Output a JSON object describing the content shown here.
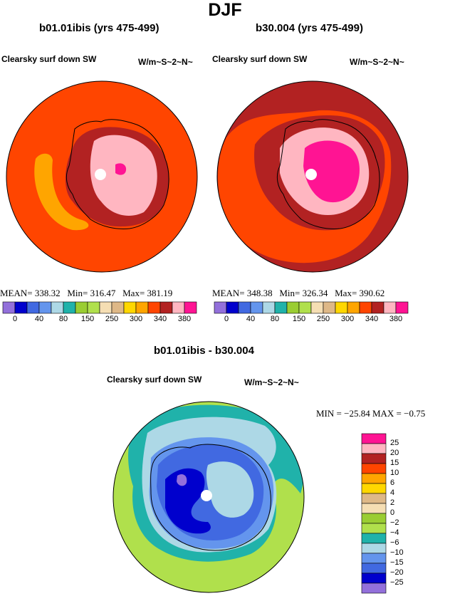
{
  "figure": {
    "title": "DJF"
  },
  "chart_data": [
    {
      "type": "heatmap",
      "projection": "south-polar stereographic",
      "title": "b01.01ibis (yrs 475-499)",
      "left_label": "Clearsky surf down SW",
      "right_label": "W/m~S~2~N~",
      "stats": {
        "mean_label": "MEAN=",
        "mean": "338.32",
        "min_label": "Min=",
        "min": "316.47",
        "max_label": "Max=",
        "max": "381.19"
      },
      "levels": [
        0,
        40,
        80,
        150,
        250,
        300,
        340,
        380
      ],
      "colors": [
        "#9370db",
        "#0000cd",
        "#4169e1",
        "#6495ed",
        "#add8e6",
        "#20b2aa",
        "#9acd32",
        "#b0e04c",
        "#f5deb3",
        "#deb887",
        "#ffd700",
        "#ffa500",
        "#ff4500",
        "#b22222",
        "#ffb6c1",
        "#ff1493"
      ],
      "field": {
        "ocean": "#ff4500",
        "ring": "#b22222",
        "coast": "#ffb6c1",
        "plateau": "#ff1493",
        "patch": "#ffa500"
      }
    },
    {
      "type": "heatmap",
      "projection": "south-polar stereographic",
      "title": "b30.004 (yrs 475-499)",
      "left_label": "Clearsky surf down SW",
      "right_label": "W/m~S~2~N~",
      "stats": {
        "mean_label": "MEAN=",
        "mean": "348.38",
        "min_label": "Min=",
        "min": "326.34",
        "max_label": "Max=",
        "max": "390.62"
      },
      "levels": [
        0,
        40,
        80,
        150,
        250,
        300,
        340,
        380
      ],
      "colors": [
        "#9370db",
        "#0000cd",
        "#4169e1",
        "#6495ed",
        "#add8e6",
        "#20b2aa",
        "#9acd32",
        "#b0e04c",
        "#f5deb3",
        "#deb887",
        "#ffd700",
        "#ffa500",
        "#ff4500",
        "#b22222",
        "#ffb6c1",
        "#ff1493"
      ],
      "field": {
        "ocean": "#ff4500",
        "ring": "#b22222",
        "coast": "#ffb6c1",
        "plateau": "#ff1493"
      }
    },
    {
      "type": "heatmap",
      "projection": "south-polar stereographic",
      "title": "b01.01ibis - b30.004",
      "left_label": "Clearsky surf down SW",
      "right_label": "W/m~S~2~N~",
      "stats": {
        "min_label": "MIN =",
        "min": "−25.84",
        "max_label": "MAX =",
        "max": "−0.75"
      },
      "levels": [
        "25",
        "20",
        "15",
        "10",
        "6",
        "4",
        "2",
        "0",
        "−2",
        "−4",
        "−6",
        "−10",
        "−15",
        "−20",
        "−25"
      ],
      "colors": [
        "#ff1493",
        "#ffb6c1",
        "#b22222",
        "#ff4500",
        "#ffa500",
        "#ffd700",
        "#deb887",
        "#f5deb3",
        "#9acd32",
        "#b0e04c",
        "#20b2aa",
        "#add8e6",
        "#6495ed",
        "#4169e1",
        "#0000cd",
        "#9370db"
      ],
      "field": {
        "outer": "#b0e04c",
        "ring_teal": "#20b2aa",
        "light": "#add8e6",
        "mid": "#6495ed",
        "deep": "#4169e1",
        "core": "#0000cd",
        "purple": "#9370db"
      }
    }
  ]
}
